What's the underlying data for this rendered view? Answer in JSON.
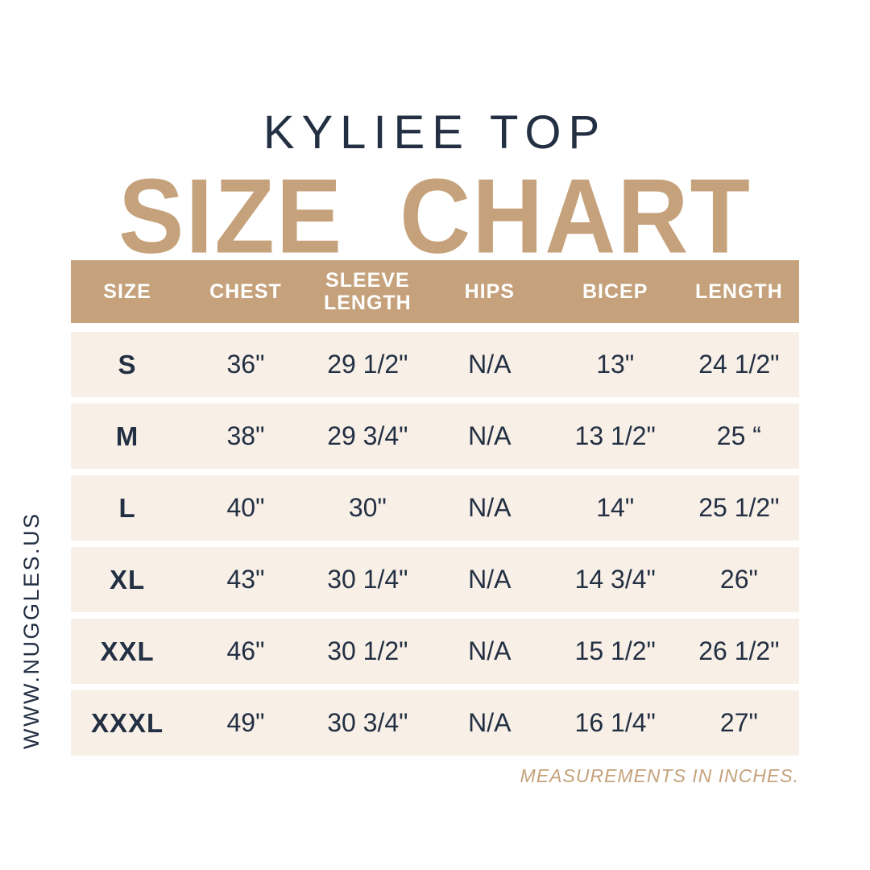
{
  "title": "KYLIEE TOP",
  "heading": "SIZE CHART",
  "website": "WWW.NUGGLES.US",
  "footnote": "MEASUREMENTS IN INCHES.",
  "colors": {
    "tan": "#C5A27C",
    "cream": "#F8F0E7",
    "navy": "#232F43",
    "header_text": "#FFFFFF",
    "background": "#FFFFFF"
  },
  "chart_data": {
    "type": "table",
    "title": "KYLIEE TOP SIZE CHART",
    "note": "MEASUREMENTS IN INCHES.",
    "columns": [
      "SIZE",
      "CHEST",
      "SLEEVE LENGTH",
      "HIPS",
      "BICEP",
      "LENGTH"
    ],
    "rows": [
      {
        "size": "S",
        "values": [
          "36\"",
          "29 1/2\"",
          "N/A",
          "13\"",
          "24 1/2\""
        ]
      },
      {
        "size": "M",
        "values": [
          "38\"",
          "29 3/4\"",
          "N/A",
          "13 1/2\"",
          "25 “"
        ]
      },
      {
        "size": "L",
        "values": [
          "40\"",
          "30\"",
          "N/A",
          "14\"",
          "25 1/2\""
        ]
      },
      {
        "size": "XL",
        "values": [
          "43\"",
          "30 1/4\"",
          "N/A",
          "14 3/4\"",
          "26\""
        ]
      },
      {
        "size": "XXL",
        "values": [
          "46\"",
          "30 1/2\"",
          "N/A",
          "15 1/2\"",
          "26 1/2\""
        ]
      },
      {
        "size": "XXXL",
        "values": [
          "49\"",
          "30 3/4\"",
          "N/A",
          "16 1/4\"",
          "27\""
        ]
      }
    ]
  }
}
